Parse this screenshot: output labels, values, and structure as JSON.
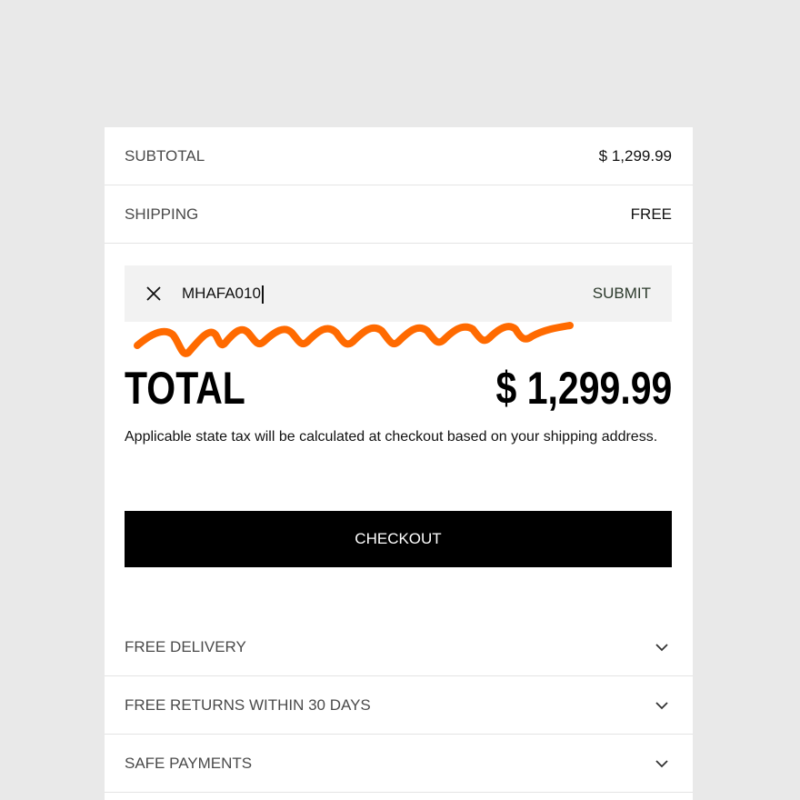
{
  "summary": {
    "subtotal_label": "SUBTOTAL",
    "subtotal_value": "$ 1,299.99",
    "shipping_label": "SHIPPING",
    "shipping_value": "FREE"
  },
  "promo": {
    "code_value": "MHAFA010",
    "submit_label": "SUBMIT",
    "clear_icon": "close-icon"
  },
  "annotation": {
    "squiggle_color": "#ff6a00"
  },
  "total": {
    "label": "TOTAL",
    "value": "$ 1,299.99",
    "tax_note": "Applicable state tax will be calculated at checkout based on your shipping address."
  },
  "checkout_label": "CHECKOUT",
  "accordions": [
    {
      "label": "FREE DELIVERY",
      "icon": "chevron-down-icon"
    },
    {
      "label": "FREE RETURNS WITHIN 30 DAYS",
      "icon": "chevron-down-icon"
    },
    {
      "label": "SAFE PAYMENTS",
      "icon": "chevron-down-icon"
    }
  ]
}
